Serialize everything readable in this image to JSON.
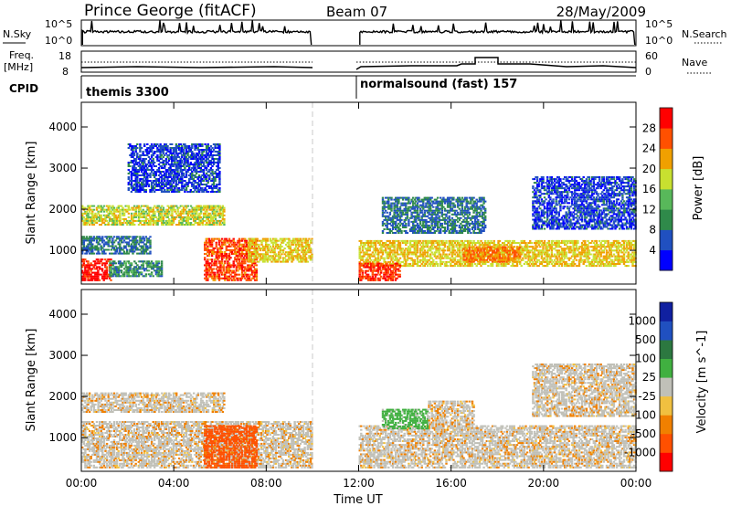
{
  "header": {
    "station": "Prince George (fitACF)",
    "beam": "Beam 07",
    "date": "28/May/2009"
  },
  "top_panels": {
    "nsky": {
      "label": "N.Sky",
      "tick_top": "10^5",
      "tick_bottom": "10^0",
      "right_label": "N.Search",
      "right_tick_top": "10^5",
      "right_tick_bottom": "10^0"
    },
    "freq": {
      "label_1": "Freq.",
      "label_2": "[MHz]",
      "tick_top": "18",
      "tick_bottom": "8",
      "right_label": "Nave",
      "right_tick_top": "60",
      "right_tick_bottom": "0"
    },
    "cpid": {
      "label": "CPID",
      "mode_1": "themis 3300",
      "mode_2": "normalsound (fast) 157"
    }
  },
  "colors": {
    "power": [
      "#0000ff",
      "#2050c0",
      "#2f8a4a",
      "#58b85a",
      "#c8e030",
      "#f0a000",
      "#ff5000",
      "#ff0000"
    ],
    "velocity": [
      "#ff0000",
      "#ff5000",
      "#f08000",
      "#f0c040",
      "#c0c0b8",
      "#40b040",
      "#2c7840",
      "#2050c0",
      "#1020a0"
    ],
    "ground_scatter": "#c0c0b8"
  },
  "chart_data": [
    {
      "type": "heatmap",
      "name": "power",
      "ylabel": "Slant Range [km]",
      "xlabel": "",
      "x_ticks": [
        "00:00",
        "04:00",
        "08:00",
        "12:00",
        "16:00",
        "20:00",
        "00:00"
      ],
      "x_range_hours": [
        0,
        24
      ],
      "y_ticks": [
        1000,
        2000,
        3000,
        4000
      ],
      "ylim": [
        180,
        4600
      ],
      "colorbar": {
        "label": "Power [dB]",
        "ticks": [
          "4",
          "8",
          "12",
          "16",
          "20",
          "24",
          "28"
        ],
        "range": [
          0,
          32
        ]
      },
      "data_gap_hours": [
        10,
        12
      ],
      "regions": [
        {
          "t": [
            0.0,
            1.3
          ],
          "r": [
            250,
            800
          ],
          "level": 30
        },
        {
          "t": [
            1.2,
            3.5
          ],
          "r": [
            350,
            750
          ],
          "level": 10
        },
        {
          "t": [
            0.0,
            6.2
          ],
          "r": [
            1600,
            2100
          ],
          "level": 18
        },
        {
          "t": [
            0.0,
            3.0
          ],
          "r": [
            900,
            1350
          ],
          "level": 8
        },
        {
          "t": [
            5.3,
            7.6
          ],
          "r": [
            250,
            1300
          ],
          "level": 27
        },
        {
          "t": [
            7.2,
            10.0
          ],
          "r": [
            700,
            1300
          ],
          "level": 20
        },
        {
          "t": [
            2.0,
            6.0
          ],
          "r": [
            2400,
            3600
          ],
          "level": 5
        },
        {
          "t": [
            12.0,
            24.0
          ],
          "r": [
            600,
            1250
          ],
          "level": 20
        },
        {
          "t": [
            12.0,
            13.8
          ],
          "r": [
            250,
            700
          ],
          "level": 28
        },
        {
          "t": [
            13.0,
            17.5
          ],
          "r": [
            1400,
            2300
          ],
          "level": 8
        },
        {
          "t": [
            19.5,
            24.0
          ],
          "r": [
            1500,
            2800
          ],
          "level": 5
        },
        {
          "t": [
            16.5,
            19.0
          ],
          "r": [
            700,
            1100
          ],
          "level": 24
        }
      ]
    },
    {
      "type": "heatmap",
      "name": "velocity",
      "ylabel": "Slant Range [km]",
      "xlabel": "Time UT",
      "x_ticks": [
        "00:00",
        "04:00",
        "08:00",
        "12:00",
        "16:00",
        "20:00",
        "00:00"
      ],
      "x_range_hours": [
        0,
        24
      ],
      "y_ticks": [
        1000,
        2000,
        3000,
        4000
      ],
      "ylim": [
        180,
        4600
      ],
      "colorbar": {
        "label": "Velocity [m s^-1]",
        "ticks": [
          "1000",
          "500",
          "100",
          "25",
          "-25",
          "-100",
          "-500",
          "-1000"
        ]
      },
      "data_gap_hours": [
        10,
        12
      ],
      "regions": [
        {
          "t": [
            0.0,
            10.0
          ],
          "r": [
            250,
            1400
          ],
          "v": 0
        },
        {
          "t": [
            0.0,
            6.2
          ],
          "r": [
            1600,
            2100
          ],
          "v": 0
        },
        {
          "t": [
            5.3,
            7.6
          ],
          "r": [
            250,
            1300
          ],
          "v": -150
        },
        {
          "t": [
            12.0,
            24.0
          ],
          "r": [
            250,
            1300
          ],
          "v": 0
        },
        {
          "t": [
            13.0,
            15.0
          ],
          "r": [
            1200,
            1700
          ],
          "v": 150
        },
        {
          "t": [
            15.0,
            17.0
          ],
          "r": [
            1300,
            1900
          ],
          "v": 0
        },
        {
          "t": [
            19.5,
            24.0
          ],
          "r": [
            1500,
            2800
          ],
          "v": 0
        }
      ]
    }
  ]
}
